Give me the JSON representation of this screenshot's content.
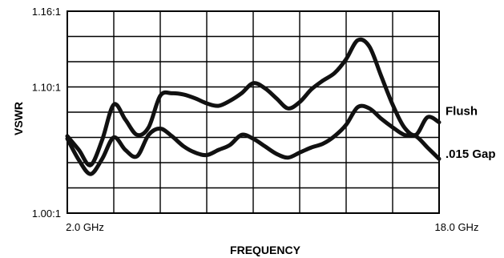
{
  "chart_data": {
    "type": "line",
    "title": "",
    "xlabel": "FREQUENCY",
    "ylabel": "VSWR",
    "x_unit": "GHz",
    "xlim": [
      2.0,
      18.0
    ],
    "ylim": [
      1.0,
      1.16
    ],
    "grid": true,
    "legend": "labels at right end of each series",
    "x_tick_labels": [
      "2.0 GHz",
      "18.0 GHz"
    ],
    "y_tick_labels": [
      "1.16:1",
      "1.10:1",
      "1.00:1"
    ],
    "y_tick_values": [
      1.16,
      1.1,
      1.0
    ],
    "series": [
      {
        "name": "Flush",
        "x": [
          2.0,
          2.5,
          3.0,
          3.5,
          4.0,
          4.5,
          5.0,
          5.5,
          6.0,
          6.5,
          7.0,
          7.5,
          8.0,
          8.5,
          9.0,
          9.5,
          10.0,
          10.5,
          11.0,
          11.5,
          12.0,
          12.5,
          13.0,
          13.5,
          14.0,
          14.5,
          15.0,
          15.5,
          16.0,
          16.5,
          17.0,
          17.5,
          18.0
        ],
        "values": [
          1.061,
          1.05,
          1.038,
          1.058,
          1.086,
          1.074,
          1.062,
          1.068,
          1.093,
          1.095,
          1.094,
          1.091,
          1.087,
          1.085,
          1.089,
          1.095,
          1.103,
          1.099,
          1.091,
          1.083,
          1.088,
          1.098,
          1.105,
          1.111,
          1.122,
          1.137,
          1.132,
          1.109,
          1.086,
          1.068,
          1.062,
          1.076,
          1.072
        ]
      },
      {
        "name": ".015 Gap",
        "x": [
          2.0,
          2.5,
          3.0,
          3.5,
          4.0,
          4.5,
          5.0,
          5.5,
          6.0,
          6.5,
          7.0,
          7.5,
          8.0,
          8.5,
          9.0,
          9.5,
          10.0,
          10.5,
          11.0,
          11.5,
          12.0,
          12.5,
          13.0,
          13.5,
          14.0,
          14.5,
          15.0,
          15.5,
          16.0,
          16.5,
          17.0,
          17.5,
          18.0
        ],
        "values": [
          1.059,
          1.042,
          1.031,
          1.043,
          1.06,
          1.05,
          1.045,
          1.062,
          1.067,
          1.061,
          1.053,
          1.048,
          1.046,
          1.05,
          1.054,
          1.062,
          1.059,
          1.053,
          1.047,
          1.044,
          1.048,
          1.052,
          1.055,
          1.061,
          1.07,
          1.084,
          1.083,
          1.075,
          1.068,
          1.062,
          1.061,
          1.052,
          1.043
        ]
      }
    ]
  }
}
